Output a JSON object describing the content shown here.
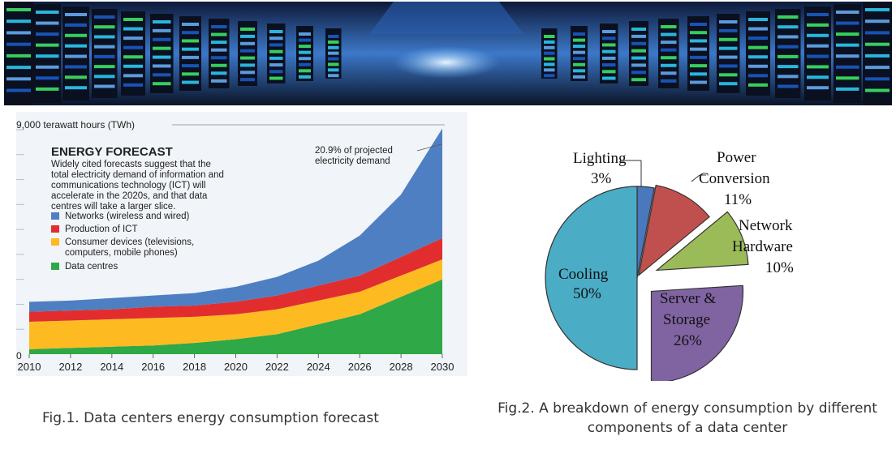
{
  "colors": {
    "networks": "#4e7fc2",
    "production": "#e22d2f",
    "consumer": "#fdbb21",
    "datacentres": "#2fa848",
    "pie_lighting": "#4a78bd",
    "pie_power": "#c0504d",
    "pie_network": "#9bbb59",
    "pie_server": "#8064a2",
    "pie_cooling": "#4bacc6"
  },
  "chart_data": [
    {
      "type": "area",
      "stacked": true,
      "title": "ENERGY FORECAST",
      "subtitle_lines": [
        "Widely cited forecasts suggest that the",
        "total electricity demand of information and",
        "communications technology (ICT) will",
        "accelerate in the 2020s, and that data",
        "centres will take a larger slice."
      ],
      "ylabel": "9,000 terawatt hours (TWh)",
      "y_zero_label": "0",
      "ylim": [
        0,
        9000
      ],
      "xlim": [
        2010,
        2030
      ],
      "x_ticks": [
        2010,
        2012,
        2014,
        2016,
        2018,
        2020,
        2022,
        2024,
        2026,
        2028,
        2030
      ],
      "annotation_lines": [
        "20.9% of projected",
        "electricity demand"
      ],
      "x": [
        2010,
        2012,
        2014,
        2016,
        2018,
        2020,
        2022,
        2024,
        2026,
        2028,
        2030
      ],
      "series": [
        {
          "name": "Data centres",
          "key": "datacentres",
          "values": [
            200,
            250,
            300,
            350,
            450,
            600,
            800,
            1200,
            1600,
            2300,
            3000
          ]
        },
        {
          "name": "Consumer devices (televisions, computers, mobile phones)",
          "key": "consumer",
          "values": [
            1100,
            1100,
            1100,
            1100,
            1050,
            1000,
            1000,
            950,
            900,
            850,
            800
          ]
        },
        {
          "name": "Production of ICT",
          "key": "production",
          "values": [
            400,
            400,
            400,
            450,
            450,
            500,
            550,
            600,
            650,
            750,
            850
          ]
        },
        {
          "name": "Networks (wireless and wired)",
          "key": "networks",
          "values": [
            400,
            400,
            450,
            450,
            500,
            600,
            750,
            1000,
            1600,
            2500,
            4400
          ]
        }
      ]
    },
    {
      "type": "pie",
      "slices": [
        {
          "label_lines": [
            "Lighting"
          ],
          "pct": "3%",
          "value": 3,
          "key": "pie_lighting"
        },
        {
          "label_lines": [
            "Power",
            "Conversion"
          ],
          "pct": "11%",
          "value": 11,
          "key": "pie_power"
        },
        {
          "label_lines": [
            "Network",
            "Hardware"
          ],
          "pct": "10%",
          "value": 10,
          "key": "pie_network"
        },
        {
          "label_lines": [
            "Server &",
            "Storage"
          ],
          "pct": "26%",
          "value": 26,
          "key": "pie_server"
        },
        {
          "label_lines": [
            "Cooling"
          ],
          "pct": "50%",
          "value": 50,
          "key": "pie_cooling"
        }
      ]
    }
  ],
  "captions": {
    "fig1": "Fig.1. Data centers energy consumption forecast",
    "fig2_line1": "Fig.2. A breakdown of energy consumption by different",
    "fig2_line2": "components of a data center"
  }
}
